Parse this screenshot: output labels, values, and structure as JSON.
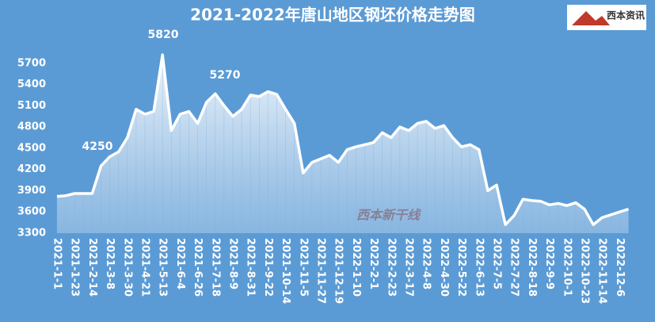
{
  "chart_data": {
    "type": "area",
    "title": "2021-2022年唐山地区钢坯价格走势图",
    "logo": "西本资讯",
    "watermark": "西本新干线",
    "annotations": [
      "4250",
      "5820",
      "5270"
    ],
    "categories": [
      "2021-1-1",
      null,
      "2021-1-23",
      null,
      "2021-2-14",
      null,
      "2021-3-8",
      null,
      "2021-3-30",
      null,
      "2021-4-21",
      null,
      "2021-5-13",
      null,
      "2021-6-4",
      null,
      "2021-6-26",
      null,
      "2021-7-18",
      null,
      "2021-8-9",
      null,
      "2021-8-31",
      null,
      "2021-9-22",
      null,
      "2021-10-14",
      null,
      "2021-11-5",
      null,
      "2021-11-27",
      null,
      "2021-12-19",
      null,
      "2022-1-10",
      null,
      "2022-2-1",
      null,
      "2022-2-23",
      null,
      "2022-3-17",
      null,
      "2022-4-8",
      null,
      "2022-4-30",
      null,
      "2022-5-22",
      null,
      "2022-6-13",
      null,
      "2022-7-5",
      null,
      "2022-7-27",
      null,
      "2022-8-18",
      null,
      "2022-9-9",
      null,
      "2022-10-1",
      null,
      "2022-10-23",
      null,
      "2022-11-14",
      null,
      "2022-12-6",
      null
    ],
    "values": [
      3820,
      3830,
      3860,
      3860,
      3860,
      4250,
      4380,
      4450,
      4650,
      5050,
      4980,
      5020,
      5820,
      4750,
      4980,
      5020,
      4850,
      5150,
      5270,
      5100,
      4950,
      5050,
      5250,
      5230,
      5300,
      5260,
      5050,
      4850,
      4150,
      4300,
      4350,
      4400,
      4300,
      4480,
      4520,
      4550,
      4580,
      4720,
      4650,
      4800,
      4750,
      4850,
      4880,
      4780,
      4820,
      4650,
      4520,
      4550,
      4480,
      3900,
      3980,
      3420,
      3550,
      3780,
      3760,
      3750,
      3700,
      3720,
      3690,
      3730,
      3640,
      3420,
      3520,
      3560,
      3600,
      3640
    ],
    "color": "#ffffff",
    "ylim": [
      3300,
      6000
    ],
    "yticks": [
      3300,
      3600,
      3900,
      4200,
      4500,
      4800,
      5100,
      5400,
      5700
    ]
  }
}
